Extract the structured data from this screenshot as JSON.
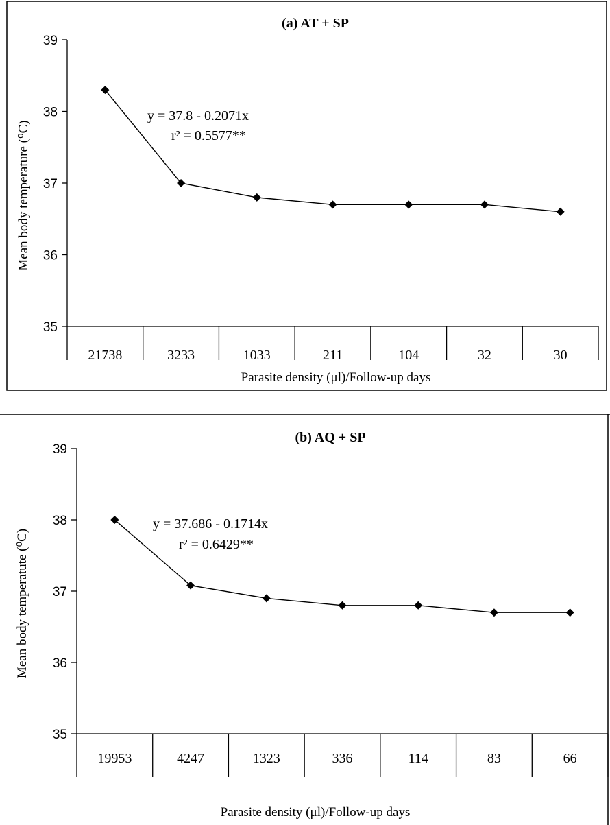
{
  "chart_data": [
    {
      "type": "line",
      "title": "(a) AT + SP",
      "xlabel": "Parasite density (μl)/Follow-up  days",
      "ylabel": "Mean body temperature (⁰C)",
      "ylim": [
        35,
        39
      ],
      "yticks": [
        "35",
        "36",
        "37",
        "38",
        "39"
      ],
      "categories": [
        "21738",
        "3233",
        "1033",
        "211",
        "104",
        "32",
        "30"
      ],
      "values": [
        38.3,
        37.0,
        36.8,
        36.7,
        36.7,
        36.7,
        36.6
      ],
      "equation": "y = 37.8 - 0.2071x",
      "r2": "r² = 0.5577**",
      "grid": false,
      "legend": "none"
    },
    {
      "type": "line",
      "title": "(b) AQ + SP",
      "xlabel": "Parasite density (μl)/Follow-up  days",
      "ylabel": "Mean body temperatute (⁰C)",
      "ylim": [
        35,
        39
      ],
      "yticks": [
        "35",
        "36",
        "37",
        "38",
        "39"
      ],
      "categories": [
        "19953",
        "4247",
        "1323",
        "336",
        "114",
        "83",
        "66"
      ],
      "values": [
        38.0,
        37.08,
        36.9,
        36.8,
        36.8,
        36.7,
        36.7
      ],
      "equation": "y = 37.686 - 0.1714x",
      "r2": "r² = 0.6429**",
      "grid": false,
      "legend": "none"
    }
  ]
}
